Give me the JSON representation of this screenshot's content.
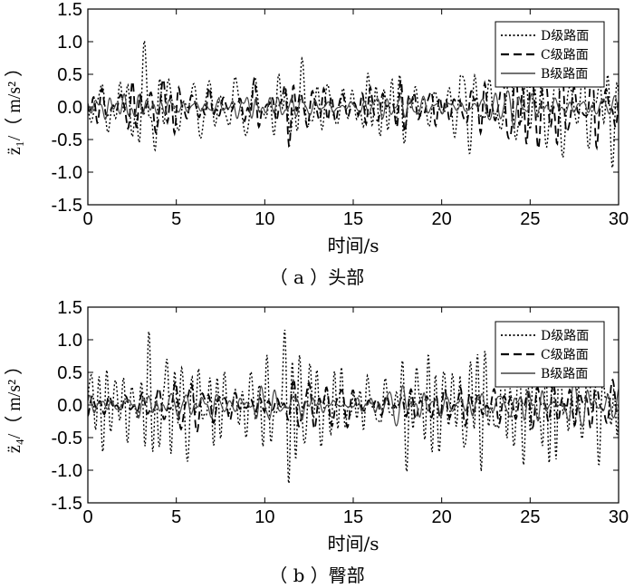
{
  "chart_data": [
    {
      "type": "line",
      "caption": "（ a ）头部",
      "xlabel": "时间/s",
      "ylabel": "z̈₁/（ m/s² ）",
      "xlim": [
        0,
        30
      ],
      "ylim": [
        -1.5,
        1.5
      ],
      "xticks": [
        "0",
        "5",
        "10",
        "15",
        "20",
        "25",
        "30"
      ],
      "yticks": [
        "1.5",
        "1.0",
        "0.5",
        "0.0",
        "-0.5",
        "-1.0",
        "-1.5"
      ],
      "grid": false,
      "legend_position": "top-right",
      "series": [
        {
          "name": "D级路面",
          "style": "dotted",
          "amplitude": 0.9,
          "seed": 11
        },
        {
          "name": "C级路面",
          "style": "dashed",
          "amplitude": 0.45,
          "seed": 23
        },
        {
          "name": "B级路面",
          "style": "solid",
          "amplitude": 0.25,
          "seed": 37
        }
      ]
    },
    {
      "type": "line",
      "caption": "（ b ）臀部",
      "xlabel": "时间/s",
      "ylabel": "z̈₄/（ m/s² ）",
      "xlim": [
        0,
        30
      ],
      "ylim": [
        -1.5,
        1.5
      ],
      "xticks": [
        "0",
        "5",
        "10",
        "15",
        "20",
        "25",
        "30"
      ],
      "yticks": [
        "1.5",
        "1.0",
        "0.5",
        "0.0",
        "-0.5",
        "-1.0",
        "-1.5"
      ],
      "grid": false,
      "legend_position": "top-right",
      "series": [
        {
          "name": "D级路面",
          "style": "dotted",
          "amplitude": 0.9,
          "seed": 41
        },
        {
          "name": "C级路面",
          "style": "dashed",
          "amplitude": 0.5,
          "seed": 53
        },
        {
          "name": "B级路面",
          "style": "solid",
          "amplitude": 0.28,
          "seed": 67
        }
      ]
    }
  ]
}
